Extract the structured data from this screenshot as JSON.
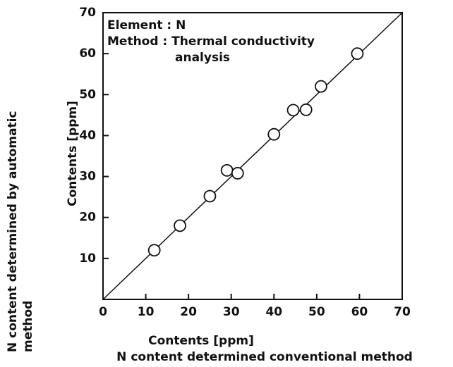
{
  "chart_data": {
    "type": "scatter",
    "annotations": [
      "Element : N",
      "Method : Thermal conductivity",
      "analysis"
    ],
    "x_label": "Contents [ppm]",
    "x_label_2": "N content determined conventional method",
    "y_label": "Contents [ppm]",
    "y_label_2": [
      "N content determined by automatic",
      "method"
    ],
    "x": [
      12,
      18,
      25,
      29,
      31.5,
      40,
      44.5,
      47.5,
      51,
      59.5
    ],
    "values": [
      12,
      18,
      25.2,
      31.5,
      30.8,
      40.3,
      46.2,
      46.3,
      52,
      60
    ],
    "xlim": [
      0,
      70
    ],
    "ylim": [
      0,
      70
    ],
    "xticks": [
      0,
      10,
      20,
      30,
      40,
      50,
      60,
      70
    ],
    "yticks": [
      10,
      20,
      30,
      40,
      50,
      60,
      70
    ],
    "color": "#111111"
  }
}
